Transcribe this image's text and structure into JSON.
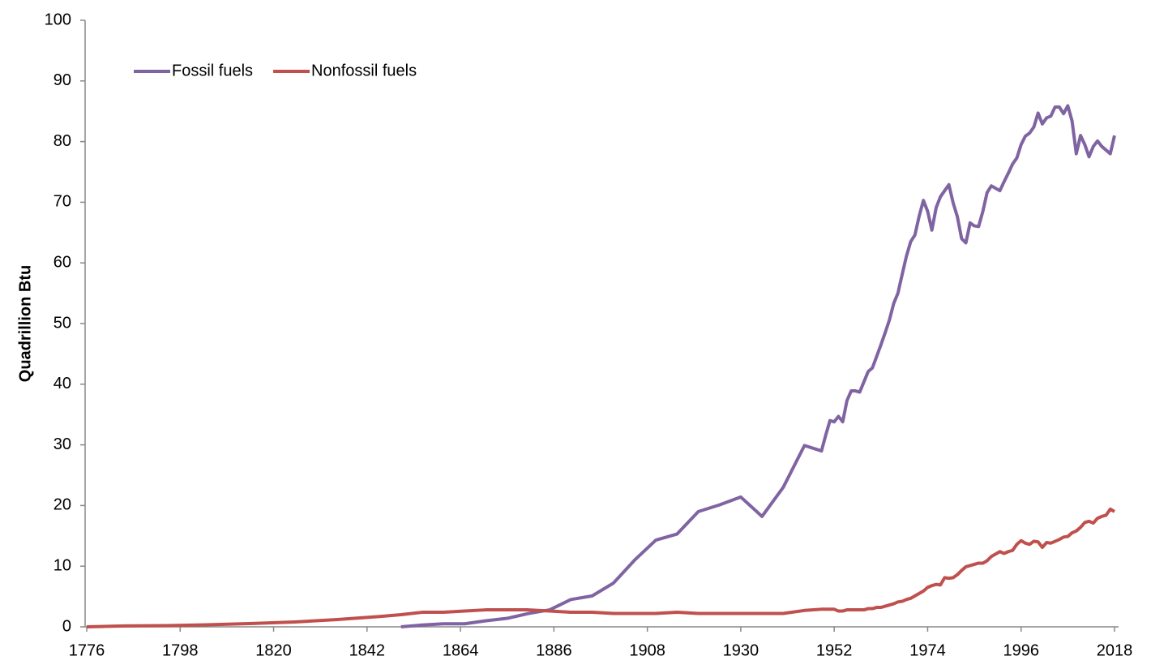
{
  "chart_data": {
    "type": "line",
    "y_label": "Quadrillion Btu",
    "x": [
      1776,
      1785,
      1795,
      1805,
      1815,
      1825,
      1835,
      1845,
      1850,
      1855,
      1860,
      1865,
      1870,
      1875,
      1880,
      1885,
      1890,
      1895,
      1900,
      1905,
      1910,
      1915,
      1920,
      1925,
      1930,
      1935,
      1940,
      1945,
      1949,
      1950,
      1951,
      1952,
      1953,
      1954,
      1955,
      1956,
      1957,
      1958,
      1959,
      1960,
      1961,
      1962,
      1963,
      1964,
      1965,
      1966,
      1967,
      1968,
      1969,
      1970,
      1971,
      1972,
      1973,
      1974,
      1975,
      1976,
      1977,
      1978,
      1979,
      1980,
      1981,
      1982,
      1983,
      1984,
      1985,
      1986,
      1987,
      1988,
      1989,
      1990,
      1991,
      1992,
      1993,
      1994,
      1995,
      1996,
      1997,
      1998,
      1999,
      2000,
      2001,
      2002,
      2003,
      2004,
      2005,
      2006,
      2007,
      2008,
      2009,
      2010,
      2011,
      2012,
      2013,
      2014,
      2015,
      2016,
      2017,
      2018
    ],
    "series": [
      {
        "name": "Fossil fuels",
        "color": "#8064a2",
        "values": [
          null,
          null,
          null,
          null,
          null,
          null,
          null,
          null,
          0,
          0.3,
          0.5,
          0.5,
          1.0,
          1.4,
          2.2,
          2.8,
          4.5,
          5.1,
          7.2,
          11.0,
          14.3,
          15.3,
          19.0,
          20.1,
          21.4,
          18.2,
          23.0,
          29.9,
          29.0,
          31.6,
          34.0,
          33.8,
          34.7,
          33.8,
          37.3,
          38.9,
          38.9,
          38.7,
          40.4,
          42.1,
          42.7,
          44.6,
          46.5,
          48.5,
          50.6,
          53.3,
          55.0,
          58.1,
          61.1,
          63.5,
          64.6,
          67.7,
          70.3,
          68.5,
          65.4,
          69.1,
          70.9,
          71.9,
          72.9,
          69.9,
          67.6,
          64.0,
          63.3,
          66.6,
          66.1,
          66.0,
          68.5,
          71.6,
          72.7,
          72.3,
          71.9,
          73.4,
          74.8,
          76.3,
          77.3,
          79.5,
          80.9,
          81.4,
          82.4,
          84.7,
          82.9,
          83.9,
          84.2,
          85.7,
          85.7,
          84.6,
          85.9,
          83.4,
          78.0,
          81.0,
          79.5,
          77.5,
          79.2,
          80.1,
          79.2,
          78.6,
          78.0,
          81.0
        ]
      },
      {
        "name": "Nonfossil fuels",
        "color": "#c0504d",
        "values": [
          0,
          0.15,
          0.2,
          0.35,
          0.55,
          0.8,
          1.2,
          1.7,
          2.0,
          2.4,
          2.4,
          2.6,
          2.8,
          2.8,
          2.8,
          2.6,
          2.4,
          2.4,
          2.2,
          2.2,
          2.2,
          2.4,
          2.2,
          2.2,
          2.2,
          2.2,
          2.2,
          2.7,
          2.9,
          2.9,
          2.9,
          2.9,
          2.6,
          2.6,
          2.8,
          2.8,
          2.8,
          2.8,
          2.8,
          3.0,
          3.0,
          3.2,
          3.2,
          3.4,
          3.6,
          3.8,
          4.1,
          4.2,
          4.5,
          4.7,
          5.1,
          5.5,
          5.9,
          6.5,
          6.8,
          7.0,
          6.9,
          8.1,
          8.0,
          8.1,
          8.6,
          9.3,
          9.9,
          10.1,
          10.3,
          10.5,
          10.5,
          10.9,
          11.6,
          12.0,
          12.4,
          12.1,
          12.4,
          12.6,
          13.6,
          14.2,
          13.8,
          13.6,
          14.1,
          14.0,
          13.1,
          13.9,
          13.8,
          14.1,
          14.4,
          14.8,
          14.9,
          15.5,
          15.8,
          16.4,
          17.2,
          17.4,
          17.1,
          17.9,
          18.2,
          18.4,
          19.4,
          19.0
        ]
      }
    ],
    "xlim": [
      1776,
      2018
    ],
    "xticks": [
      1776,
      1798,
      1820,
      1842,
      1864,
      1886,
      1908,
      1930,
      1952,
      1974,
      1996,
      2018
    ],
    "ylim": [
      0,
      100
    ],
    "yticks": [
      0,
      10,
      20,
      30,
      40,
      50,
      60,
      70,
      80,
      90,
      100
    ],
    "grid": false,
    "legend": "upper left"
  }
}
